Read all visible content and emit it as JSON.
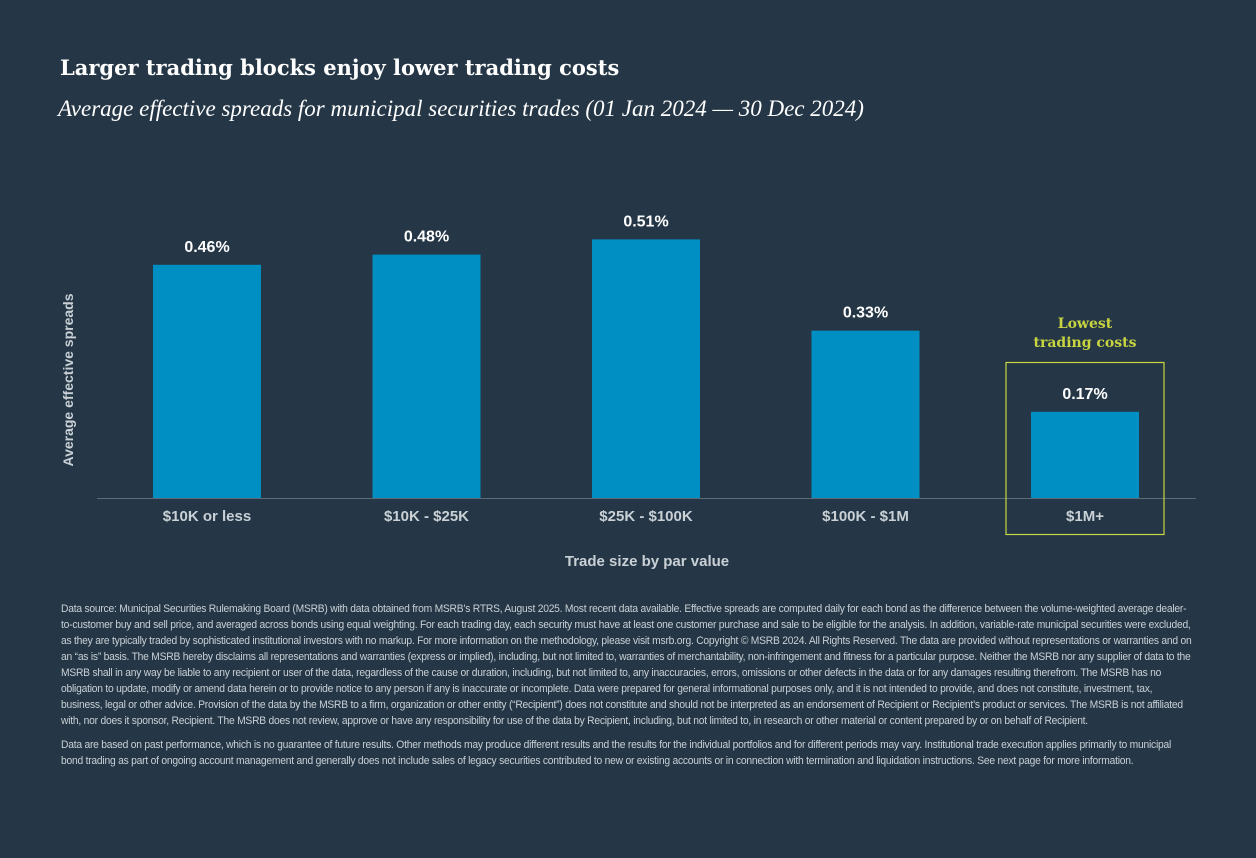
{
  "header": {
    "title": "Larger trading blocks enjoy lower trading costs",
    "subtitle": "Average effective spreads for municipal securities trades (01 Jan 2024 — 30 Dec 2024)"
  },
  "chart_data": {
    "type": "bar",
    "categories": [
      "$10K or less",
      "$10K - $25K",
      "$25K - $100K",
      "$100K - $1M",
      "$1M+"
    ],
    "values": [
      0.46,
      0.48,
      0.51,
      0.33,
      0.17
    ],
    "data_labels": [
      "0.46%",
      "0.48%",
      "0.51%",
      "0.33%",
      "0.17%"
    ],
    "unit": "%",
    "xlabel": "Trade size by par value",
    "ylabel": "Average effective spreads",
    "ylim": [
      0,
      0.56
    ],
    "grid": false,
    "legend": "none",
    "highlight": {
      "category_index": 4,
      "label_line1": "Lowest",
      "label_line2": "trading costs"
    }
  },
  "colors": {
    "background": "#253746",
    "bar": "#008fc3",
    "highlight": "#c8d540",
    "axis_text": "#c9d0d6",
    "baseline": "#5b6b78"
  },
  "footer": {
    "source_paragraph_1": "Data source: Municipal Securities Rulemaking Board (MSRB) with data obtained from MSRB’s RTRS, August 2025. Most recent data available. Effective spreads are computed daily for each bond as the difference between the volume-weighted average dealer-to-customer buy and sell price, and averaged across bonds using equal weighting. For each trading day, each security must have at least one customer purchase and sale to be eligible for the analysis. In addition, variable-rate municipal securities were excluded, as they are typically traded by sophisticated institutional investors with no markup. For more information on the methodology, please visit msrb.org. Copyright © MSRB 2024. All Rights Reserved. The data are provided without representations or warranties and on an “as is” basis. The MSRB hereby disclaims all representations and warranties (express or implied), including, but not limited to, warranties of merchantability, non-infringement and fitness for a particular purpose. Neither the MSRB nor any supplier of data to the MSRB shall in any way be liable to any recipient or user of the data, regardless of the cause or duration, including, but not limited to, any inaccuracies, errors, omissions or other defects in the data or for any damages resulting therefrom. The MSRB has no obligation to update, modify or amend data herein or to provide notice to any person if any is inaccurate or incomplete. Data were prepared for general informational purposes only, and it is not intended to provide, and does not constitute, investment, tax, business, legal or other advice. Provision of the data by the MSRB to a firm, organization or other entity (“Recipient”) does not constitute and should not be interpreted as an endorsement of Recipient or Recipient’s product or services. The MSRB is not affiliated with, nor does it sponsor, Recipient. The MSRB does not review, approve or have any responsibility for use of the data by Recipient, including, but not limited to, in research or other material or content prepared by or on behalf of Recipient.",
    "source_paragraph_2": "Data are based on past performance, which is no guarantee of future results. Other methods may produce different results and the results for the individual portfolios and for different periods may vary. Institutional trade execution applies primarily to municipal bond trading as part of ongoing account management and generally does not include sales of legacy securities contributed to new or existing accounts or in connection with termination and liquidation instructions. See next page for more information."
  }
}
